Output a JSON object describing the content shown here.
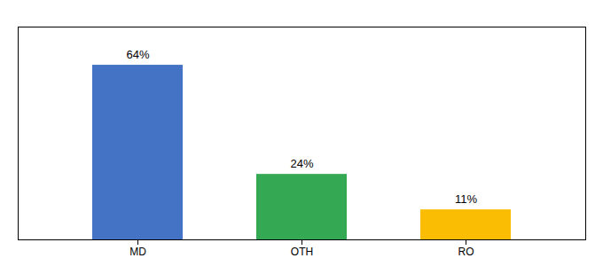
{
  "chart_data": {
    "type": "bar",
    "categories": [
      "MD",
      "OTH",
      "RO"
    ],
    "values": [
      64,
      24,
      11
    ],
    "value_labels": [
      "64%",
      "24%",
      "11%"
    ],
    "colors": [
      "#4472C4",
      "#34A853",
      "#FBBC04"
    ],
    "ylim": [
      0,
      78
    ],
    "data_labels": true,
    "tick_labels": "x"
  }
}
